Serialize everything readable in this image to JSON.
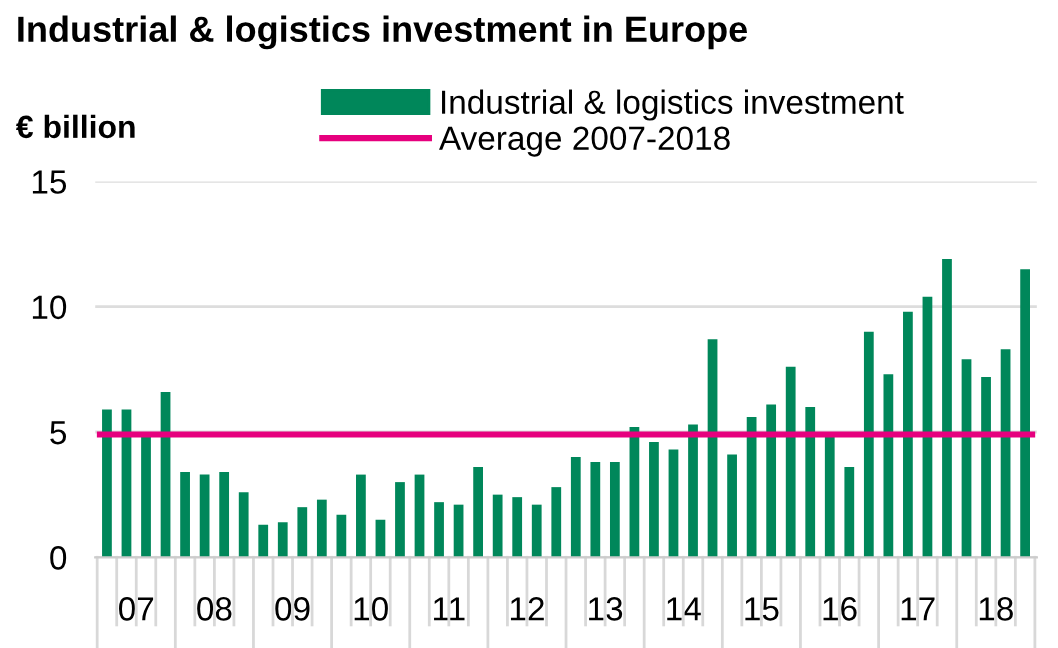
{
  "chart_data": {
    "type": "bar",
    "title": "Industrial & logistics investment in Europe",
    "ylabel": "€ billion",
    "categories": [
      null,
      "07",
      null,
      null,
      null,
      "08",
      null,
      null,
      null,
      "09",
      null,
      null,
      null,
      "10",
      null,
      null,
      null,
      "11",
      null,
      null,
      null,
      "12",
      null,
      null,
      null,
      "13",
      null,
      null,
      null,
      "14",
      null,
      null,
      null,
      "15",
      null,
      null,
      null,
      "16",
      null,
      null,
      null,
      "17",
      null,
      null,
      null,
      "18",
      null,
      null
    ],
    "series": [
      {
        "name": "Industrial & logistics investment",
        "color": "#00875a",
        "values": [
          5.9,
          5.9,
          4.8,
          6.6,
          3.4,
          3.3,
          3.4,
          2.6,
          1.3,
          1.4,
          2.0,
          2.3,
          1.7,
          3.3,
          1.5,
          3.0,
          3.3,
          2.2,
          2.1,
          3.6,
          2.5,
          2.4,
          2.1,
          2.8,
          4.0,
          3.8,
          3.8,
          5.2,
          4.6,
          4.3,
          5.3,
          8.7,
          4.1,
          5.6,
          6.1,
          7.6,
          6.0,
          4.8,
          3.6,
          9.0,
          7.3,
          9.8,
          10.4,
          11.9,
          7.9,
          7.2,
          8.3,
          11.5
        ]
      }
    ],
    "ref_lines": [
      {
        "axis": "y",
        "value": 4.9,
        "label": "Average 2007-2018",
        "color": "#e6007e",
        "line_style": "solid"
      }
    ],
    "ylim": [
      0,
      15
    ],
    "yticks": [
      0,
      5,
      10,
      15
    ],
    "grid": "y",
    "legend": "top"
  }
}
